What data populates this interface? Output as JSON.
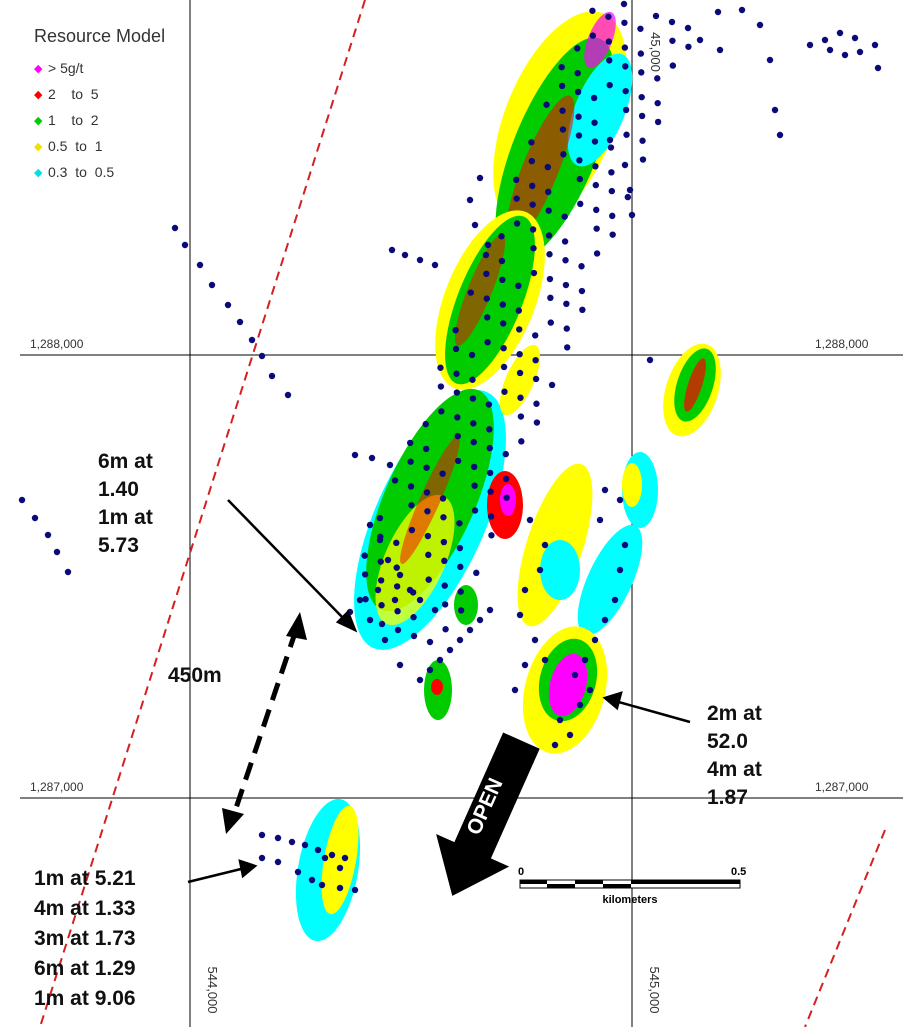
{
  "legend": {
    "title": "Resource Model",
    "items": [
      {
        "label": "> 5g/t",
        "color": "#ff00ff"
      },
      {
        "label": "2    to  5",
        "color": "#ff0000"
      },
      {
        "label": "1    to  2",
        "color": "#00cc00"
      },
      {
        "label": "0.5  to  1",
        "color": "#ffff00"
      },
      {
        "label": "0.3  to  0.5",
        "color": "#00ffff"
      }
    ]
  },
  "grid": {
    "northing_top": "1,288,000",
    "northing_bottom": "1,287,000",
    "easting_left": "544,000",
    "easting_right": "545,000",
    "top_partial": "45,000"
  },
  "callouts": {
    "upper_left": [
      "6m at",
      "1.40",
      "1m at",
      "5.73"
    ],
    "right": [
      "2m at",
      "52.0",
      "4m at",
      "1.87"
    ],
    "lower_left": [
      "1m at 5.21",
      "4m at 1.33",
      "3m at 1.73",
      "6m at 1.29",
      "1m at 9.06"
    ],
    "distance": "450m",
    "open": "OPEN"
  },
  "scale_bar": {
    "start": "0",
    "end": "0.5",
    "unit": "kilometers"
  },
  "colors": {
    "drillhole": "#0a0a7a",
    "fault": "#d42020",
    "grid_line": "#000000",
    "magenta": "#ff00ff",
    "red": "#ff0000",
    "green": "#00cc00",
    "yellow": "#ffff00",
    "cyan": "#00ffff"
  }
}
